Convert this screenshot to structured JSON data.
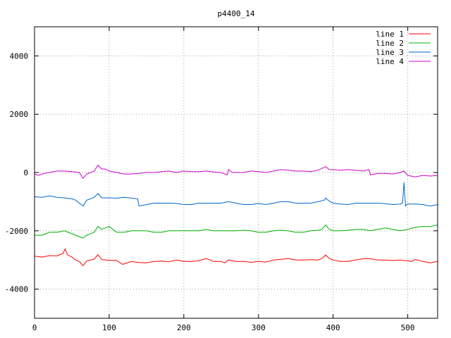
{
  "chart_data": {
    "type": "line",
    "title": "p4400_14",
    "xlabel": "",
    "ylabel": "",
    "xlim": [
      0,
      540
    ],
    "ylim": [
      -5000,
      5000
    ],
    "xticks": [
      0,
      100,
      200,
      300,
      400,
      500
    ],
    "yticks": [
      -4000,
      -2000,
      0,
      2000,
      4000
    ],
    "grid": true,
    "legend_position": "top-right",
    "series": [
      {
        "name": "line 1",
        "color": "#ff0000",
        "points": [
          [
            0,
            -2870
          ],
          [
            10,
            -2900
          ],
          [
            20,
            -2850
          ],
          [
            30,
            -2860
          ],
          [
            38,
            -2780
          ],
          [
            41,
            -2620
          ],
          [
            44,
            -2820
          ],
          [
            50,
            -2900
          ],
          [
            55,
            -3000
          ],
          [
            60,
            -3050
          ],
          [
            65,
            -3200
          ],
          [
            70,
            -3030
          ],
          [
            80,
            -2970
          ],
          [
            85,
            -2820
          ],
          [
            90,
            -2990
          ],
          [
            100,
            -3010
          ],
          [
            110,
            -3020
          ],
          [
            118,
            -3150
          ],
          [
            130,
            -3050
          ],
          [
            140,
            -3090
          ],
          [
            150,
            -3100
          ],
          [
            160,
            -3050
          ],
          [
            170,
            -3040
          ],
          [
            180,
            -3060
          ],
          [
            190,
            -3000
          ],
          [
            200,
            -3050
          ],
          [
            210,
            -3050
          ],
          [
            220,
            -3030
          ],
          [
            230,
            -2950
          ],
          [
            240,
            -3050
          ],
          [
            250,
            -3050
          ],
          [
            255,
            -3100
          ],
          [
            260,
            -3000
          ],
          [
            270,
            -3050
          ],
          [
            280,
            -3050
          ],
          [
            290,
            -3080
          ],
          [
            300,
            -3050
          ],
          [
            310,
            -3070
          ],
          [
            320,
            -3000
          ],
          [
            330,
            -2980
          ],
          [
            340,
            -2950
          ],
          [
            350,
            -3000
          ],
          [
            360,
            -3000
          ],
          [
            370,
            -2990
          ],
          [
            380,
            -3000
          ],
          [
            385,
            -2950
          ],
          [
            390,
            -2830
          ],
          [
            395,
            -2950
          ],
          [
            400,
            -3000
          ],
          [
            410,
            -3050
          ],
          [
            420,
            -3050
          ],
          [
            430,
            -3000
          ],
          [
            440,
            -2960
          ],
          [
            450,
            -2960
          ],
          [
            460,
            -3000
          ],
          [
            470,
            -3000
          ],
          [
            480,
            -3020
          ],
          [
            490,
            -3000
          ],
          [
            500,
            -3030
          ],
          [
            505,
            -3050
          ],
          [
            510,
            -2980
          ],
          [
            520,
            -3050
          ],
          [
            530,
            -3100
          ],
          [
            540,
            -3050
          ]
        ]
      },
      {
        "name": "line 2",
        "color": "#00b000",
        "points": [
          [
            0,
            -2150
          ],
          [
            10,
            -2150
          ],
          [
            20,
            -2050
          ],
          [
            30,
            -2050
          ],
          [
            40,
            -2000
          ],
          [
            50,
            -2100
          ],
          [
            60,
            -2200
          ],
          [
            65,
            -2250
          ],
          [
            70,
            -2150
          ],
          [
            80,
            -2050
          ],
          [
            85,
            -1850
          ],
          [
            90,
            -1950
          ],
          [
            95,
            -1900
          ],
          [
            100,
            -1850
          ],
          [
            110,
            -2050
          ],
          [
            120,
            -2050
          ],
          [
            130,
            -2000
          ],
          [
            140,
            -2000
          ],
          [
            150,
            -2000
          ],
          [
            160,
            -2050
          ],
          [
            170,
            -2050
          ],
          [
            180,
            -2000
          ],
          [
            190,
            -2000
          ],
          [
            200,
            -2000
          ],
          [
            210,
            -2000
          ],
          [
            220,
            -2000
          ],
          [
            230,
            -1950
          ],
          [
            240,
            -2000
          ],
          [
            250,
            -2000
          ],
          [
            260,
            -2000
          ],
          [
            270,
            -2000
          ],
          [
            280,
            -1980
          ],
          [
            290,
            -2000
          ],
          [
            300,
            -2050
          ],
          [
            310,
            -2050
          ],
          [
            320,
            -2000
          ],
          [
            330,
            -1980
          ],
          [
            340,
            -2000
          ],
          [
            350,
            -2050
          ],
          [
            360,
            -2050
          ],
          [
            370,
            -2000
          ],
          [
            380,
            -1980
          ],
          [
            385,
            -1950
          ],
          [
            390,
            -1800
          ],
          [
            395,
            -1950
          ],
          [
            400,
            -2000
          ],
          [
            410,
            -2000
          ],
          [
            420,
            -1980
          ],
          [
            430,
            -1950
          ],
          [
            440,
            -1950
          ],
          [
            450,
            -2000
          ],
          [
            460,
            -1950
          ],
          [
            470,
            -1900
          ],
          [
            480,
            -1950
          ],
          [
            490,
            -2000
          ],
          [
            500,
            -1950
          ],
          [
            510,
            -1880
          ],
          [
            520,
            -1850
          ],
          [
            530,
            -1850
          ],
          [
            540,
            -1800
          ]
        ]
      },
      {
        "name": "line 3",
        "color": "#0066cc",
        "points": [
          [
            0,
            -830
          ],
          [
            10,
            -850
          ],
          [
            20,
            -800
          ],
          [
            30,
            -850
          ],
          [
            40,
            -870
          ],
          [
            50,
            -900
          ],
          [
            55,
            -950
          ],
          [
            60,
            -1050
          ],
          [
            65,
            -1150
          ],
          [
            70,
            -950
          ],
          [
            75,
            -900
          ],
          [
            80,
            -850
          ],
          [
            85,
            -720
          ],
          [
            90,
            -870
          ],
          [
            100,
            -870
          ],
          [
            110,
            -880
          ],
          [
            120,
            -850
          ],
          [
            130,
            -880
          ],
          [
            138,
            -900
          ],
          [
            140,
            -1150
          ],
          [
            150,
            -1100
          ],
          [
            160,
            -1050
          ],
          [
            170,
            -1050
          ],
          [
            180,
            -1050
          ],
          [
            190,
            -1060
          ],
          [
            200,
            -1100
          ],
          [
            210,
            -1100
          ],
          [
            220,
            -1050
          ],
          [
            230,
            -1050
          ],
          [
            240,
            -1050
          ],
          [
            250,
            -1050
          ],
          [
            260,
            -1000
          ],
          [
            270,
            -1050
          ],
          [
            280,
            -1100
          ],
          [
            290,
            -1100
          ],
          [
            300,
            -1060
          ],
          [
            310,
            -1100
          ],
          [
            320,
            -1050
          ],
          [
            330,
            -1000
          ],
          [
            340,
            -1000
          ],
          [
            350,
            -1050
          ],
          [
            360,
            -1050
          ],
          [
            370,
            -1050
          ],
          [
            380,
            -1000
          ],
          [
            388,
            -950
          ],
          [
            390,
            -880
          ],
          [
            395,
            -980
          ],
          [
            400,
            -1050
          ],
          [
            410,
            -1080
          ],
          [
            420,
            -1100
          ],
          [
            430,
            -1050
          ],
          [
            440,
            -1050
          ],
          [
            450,
            -1050
          ],
          [
            460,
            -1050
          ],
          [
            470,
            -1070
          ],
          [
            480,
            -1100
          ],
          [
            490,
            -1080
          ],
          [
            493,
            -1050
          ],
          [
            495,
            -340
          ],
          [
            497,
            -1150
          ],
          [
            500,
            -1080
          ],
          [
            510,
            -1080
          ],
          [
            520,
            -1100
          ],
          [
            530,
            -1150
          ],
          [
            540,
            -1100
          ]
        ]
      },
      {
        "name": "line 4",
        "color": "#cc00cc",
        "points": [
          [
            0,
            -50
          ],
          [
            5,
            -100
          ],
          [
            10,
            -50
          ],
          [
            20,
            0
          ],
          [
            30,
            50
          ],
          [
            40,
            50
          ],
          [
            50,
            30
          ],
          [
            60,
            0
          ],
          [
            65,
            -200
          ],
          [
            70,
            -50
          ],
          [
            80,
            50
          ],
          [
            85,
            250
          ],
          [
            90,
            120
          ],
          [
            95,
            120
          ],
          [
            100,
            50
          ],
          [
            110,
            0
          ],
          [
            120,
            -50
          ],
          [
            130,
            -50
          ],
          [
            140,
            -30
          ],
          [
            150,
            0
          ],
          [
            160,
            0
          ],
          [
            170,
            30
          ],
          [
            180,
            50
          ],
          [
            190,
            0
          ],
          [
            200,
            50
          ],
          [
            210,
            30
          ],
          [
            220,
            30
          ],
          [
            230,
            50
          ],
          [
            240,
            20
          ],
          [
            250,
            0
          ],
          [
            258,
            -80
          ],
          [
            260,
            100
          ],
          [
            265,
            0
          ],
          [
            270,
            0
          ],
          [
            280,
            0
          ],
          [
            290,
            50
          ],
          [
            300,
            30
          ],
          [
            310,
            0
          ],
          [
            320,
            50
          ],
          [
            330,
            100
          ],
          [
            340,
            80
          ],
          [
            350,
            50
          ],
          [
            360,
            50
          ],
          [
            370,
            30
          ],
          [
            380,
            80
          ],
          [
            390,
            200
          ],
          [
            395,
            100
          ],
          [
            400,
            100
          ],
          [
            410,
            80
          ],
          [
            420,
            100
          ],
          [
            430,
            80
          ],
          [
            440,
            50
          ],
          [
            448,
            100
          ],
          [
            450,
            -80
          ],
          [
            460,
            -30
          ],
          [
            470,
            -30
          ],
          [
            480,
            -50
          ],
          [
            490,
            0
          ],
          [
            495,
            50
          ],
          [
            500,
            -100
          ],
          [
            510,
            -150
          ],
          [
            520,
            -100
          ],
          [
            530,
            -120
          ],
          [
            540,
            -100
          ]
        ]
      }
    ]
  }
}
